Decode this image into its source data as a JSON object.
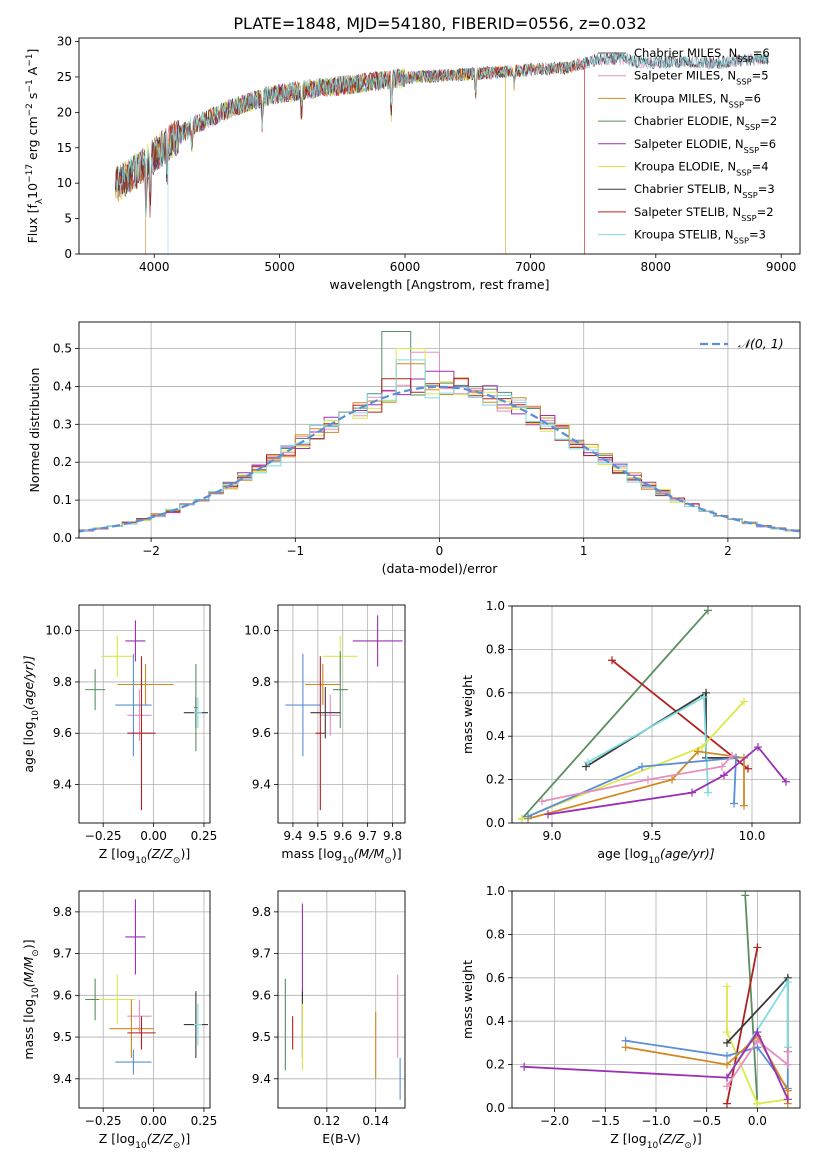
{
  "figure_title": "PLATE=1848, MJD=54180, FIBERID=0556, z=0.032",
  "chart_data": [
    {
      "id": "spectrum",
      "type": "line",
      "title": "PLATE=1848, MJD=54180, FIBERID=0556, z=0.032",
      "xlabel": "wavelength [Angstrom, rest frame]",
      "ylabel_parts": [
        "Flux [f",
        "λ",
        "10",
        "−17",
        " erg cm",
        "−2",
        " s",
        "−1",
        " A",
        "−1",
        "]"
      ],
      "xlim": [
        3400,
        9150
      ],
      "ylim": [
        0,
        30.5
      ],
      "xticks": [
        4000,
        5000,
        6000,
        7000,
        8000,
        9000
      ],
      "yticks": [
        0,
        5,
        10,
        15,
        20,
        25,
        30
      ],
      "grid": false,
      "legend_position": "top-right",
      "continuum": {
        "x": [
          3680,
          3800,
          3950,
          4100,
          4300,
          4600,
          4900,
          5200,
          5500,
          5800,
          6100,
          6400,
          6700,
          7000,
          7300,
          7550,
          7700,
          7900,
          8200,
          8500,
          8800,
          8900
        ],
        "y": [
          9.5,
          11,
          13,
          15.5,
          18,
          20.5,
          22.3,
          23.2,
          23.8,
          24.5,
          25,
          25.3,
          25.6,
          26,
          26.3,
          27.5,
          27.6,
          27,
          27.2,
          27,
          27.5,
          27.4
        ]
      },
      "series": [
        {
          "name_parts": [
            "Chabrier MILES, N",
            "SSP",
            "=6"
          ],
          "color": "#5b5b5b",
          "x_end": 8900
        },
        {
          "name_parts": [
            "Salpeter MILES, N",
            "SSP",
            "=5"
          ],
          "color": "#e58fbf",
          "x_end": 8900
        },
        {
          "name_parts": [
            "Kroupa MILES, N",
            "SSP",
            "=6"
          ],
          "color": "#d38822",
          "x_end": 7430
        },
        {
          "name_parts": [
            "Chabrier ELODIE, N",
            "SSP",
            "=2"
          ],
          "color": "#5a8f60",
          "x_end": 6800
        },
        {
          "name_parts": [
            "Salpeter ELODIE, N",
            "SSP",
            "=6"
          ],
          "color": "#9b30b5",
          "x_end": 6800
        },
        {
          "name_parts": [
            "Kroupa ELODIE, N",
            "SSP",
            "=4"
          ],
          "color": "#dde84a",
          "x_end": 6800
        },
        {
          "name_parts": [
            "Chabrier STELIB, N",
            "SSP",
            "=3"
          ],
          "color": "#3a3a3a",
          "x_end": 8900
        },
        {
          "name_parts": [
            "Salpeter STELIB, N",
            "SSP",
            "=2"
          ],
          "color": "#b22020",
          "x_end": 7430
        },
        {
          "name_parts": [
            "Kroupa STELIB, N",
            "SSP",
            "=3"
          ],
          "color": "#7fdde0",
          "x_end": 8900
        }
      ]
    },
    {
      "id": "residuals",
      "type": "histogram",
      "xlabel": "(data-model)/error",
      "ylabel": "Normed distribution",
      "xlim": [
        -2.5,
        2.5
      ],
      "ylim": [
        0,
        0.57
      ],
      "xticks": [
        -2,
        -1,
        0,
        1,
        2
      ],
      "yticks": [
        0.0,
        0.1,
        0.2,
        0.3,
        0.4,
        0.5
      ],
      "grid": true,
      "legend_position": "top-right",
      "reference_curve": {
        "name": "𝒩(0, 1)",
        "color": "#5b8fd6",
        "style": "dashed"
      },
      "bin_width": 0.1,
      "series": [
        {
          "color": "#5a8f60",
          "peak_bin": -0.3,
          "peak_value": 0.545
        },
        {
          "color": "#e58fbf",
          "peak_bin": -0.1,
          "peak_value": 0.49
        },
        {
          "color": "#d38822",
          "peak_bin": -0.2,
          "peak_value": 0.46
        },
        {
          "color": "#9b30b5",
          "peak_bin": 0.0,
          "peak_value": 0.44
        },
        {
          "color": "#dde84a",
          "peak_bin": -0.2,
          "peak_value": 0.5
        },
        {
          "color": "#b22020",
          "peak_bin": -0.3,
          "peak_value": 0.42
        },
        {
          "color": "#7fdde0",
          "peak_bin": -0.2,
          "peak_value": 0.47
        }
      ]
    },
    {
      "id": "age-vs-metallicity",
      "type": "errorbar",
      "xlabel_parts": [
        "Z [log",
        "10",
        "(Z/Z",
        "⊙",
        ")]"
      ],
      "ylabel_parts": [
        "age  [log",
        "10",
        "(age/yr)]"
      ],
      "xlim": [
        -0.37,
        0.28
      ],
      "ylim": [
        9.25,
        10.1
      ],
      "xticks": [
        -0.25,
        0.0,
        0.25
      ],
      "xtick_labels": [
        "−0.25",
        "0.00",
        "0.25"
      ],
      "yticks": [
        9.4,
        9.6,
        9.8,
        10.0
      ],
      "grid": true,
      "points": [
        {
          "color": "#5a8f60",
          "x": -0.29,
          "y": 9.77,
          "xerr": 0.05,
          "yerr": 0.08
        },
        {
          "color": "#dde84a",
          "x": -0.18,
          "y": 9.9,
          "xerr": 0.08,
          "yerr": 0.08
        },
        {
          "color": "#9b30b5",
          "x": -0.09,
          "y": 9.96,
          "xerr": 0.05,
          "yerr": 0.08
        },
        {
          "color": "#d38822",
          "x": -0.04,
          "y": 9.79,
          "xerr": 0.14,
          "yerr": 0.08
        },
        {
          "color": "#e58fbf",
          "x": -0.07,
          "y": 9.67,
          "xerr": 0.06,
          "yerr": 0.1
        },
        {
          "color": "#5b8fd6",
          "x": -0.1,
          "y": 9.71,
          "xerr": 0.09,
          "yerr": 0.2
        },
        {
          "color": "#b22020",
          "x": -0.06,
          "y": 9.6,
          "xerr": 0.07,
          "yerr": 0.3
        },
        {
          "color": "#3a3a3a",
          "x": 0.21,
          "y": 9.68,
          "xerr": 0.06,
          "yerr": 0.06
        },
        {
          "color": "#5a8f60",
          "x": 0.21,
          "y": 9.7,
          "xerr": 0.01,
          "yerr": 0.17
        },
        {
          "color": "#7fdde0",
          "x": 0.22,
          "y": 9.68,
          "xerr": 0.02,
          "yerr": 0.06
        }
      ]
    },
    {
      "id": "age-vs-mass",
      "type": "errorbar",
      "xlabel_parts": [
        "mass [log",
        "10",
        "(M/M",
        "⊙",
        ")]"
      ],
      "ylim": [
        9.25,
        10.1
      ],
      "xlim": [
        9.34,
        9.85
      ],
      "xticks": [
        9.4,
        9.5,
        9.6,
        9.7,
        9.8
      ],
      "yticks": [
        9.4,
        9.6,
        9.8,
        10.0
      ],
      "grid": true,
      "points": [
        {
          "color": "#9b30b5",
          "x": 9.74,
          "y": 9.96,
          "xerr": 0.1,
          "yerr": 0.1
        },
        {
          "color": "#dde84a",
          "x": 9.59,
          "y": 9.9,
          "xerr": 0.07,
          "yerr": 0.08
        },
        {
          "color": "#5b8fd6",
          "x": 9.44,
          "y": 9.71,
          "xerr": 0.07,
          "yerr": 0.2
        },
        {
          "color": "#d38822",
          "x": 9.52,
          "y": 9.79,
          "xerr": 0.07,
          "yerr": 0.08
        },
        {
          "color": "#5a8f60",
          "x": 9.59,
          "y": 9.77,
          "xerr": 0.03,
          "yerr": 0.15
        },
        {
          "color": "#e58fbf",
          "x": 9.55,
          "y": 9.67,
          "xerr": 0.04,
          "yerr": 0.08
        },
        {
          "color": "#b22020",
          "x": 9.51,
          "y": 9.6,
          "xerr": 0.02,
          "yerr": 0.3
        },
        {
          "color": "#3a3a3a",
          "x": 9.53,
          "y": 9.68,
          "xerr": 0.06,
          "yerr": 0.1
        }
      ]
    },
    {
      "id": "weight-vs-age",
      "type": "line",
      "xlabel_parts": [
        "age  [log",
        "10",
        "(age/yr)]"
      ],
      "ylabel": "mass weight",
      "xlim": [
        8.8,
        10.24
      ],
      "ylim": [
        0,
        1.0
      ],
      "xticks": [
        9.0,
        9.5,
        10.0
      ],
      "yticks": [
        0.0,
        0.2,
        0.4,
        0.6,
        0.8,
        1.0
      ],
      "grid": true,
      "series": [
        {
          "color": "#5a8f60",
          "x": [
            8.85,
            9.78
          ],
          "y": [
            0.02,
            0.98
          ]
        },
        {
          "color": "#b22020",
          "x": [
            9.3,
            9.98
          ],
          "y": [
            0.75,
            0.25
          ]
        },
        {
          "color": "#3a3a3a",
          "x": [
            9.17,
            9.77,
            9.77,
            9.92
          ],
          "y": [
            0.26,
            0.6,
            0.3,
            0.3
          ]
        },
        {
          "color": "#7fdde0",
          "x": [
            9.18,
            9.76,
            9.78
          ],
          "y": [
            0.28,
            0.58,
            0.14
          ]
        },
        {
          "color": "#dde84a",
          "x": [
            8.85,
            9.75,
            9.96
          ],
          "y": [
            0.02,
            0.35,
            0.56
          ]
        },
        {
          "color": "#d38822",
          "x": [
            8.88,
            9.6,
            9.73,
            9.96,
            9.96
          ],
          "y": [
            0.02,
            0.2,
            0.33,
            0.3,
            0.08
          ]
        },
        {
          "color": "#5b8fd6",
          "x": [
            8.88,
            9.45,
            9.92,
            9.91
          ],
          "y": [
            0.03,
            0.26,
            0.3,
            0.09
          ]
        },
        {
          "color": "#e58fbf",
          "x": [
            8.95,
            9.48,
            9.85,
            9.9
          ],
          "y": [
            0.1,
            0.2,
            0.26,
            0.31
          ]
        },
        {
          "color": "#9b30b5",
          "x": [
            8.98,
            9.7,
            9.86,
            10.03,
            10.17
          ],
          "y": [
            0.04,
            0.14,
            0.22,
            0.35,
            0.19
          ]
        }
      ]
    },
    {
      "id": "mass-vs-metallicity",
      "type": "errorbar",
      "xlabel_parts": [
        "Z [log",
        "10",
        "(Z/Z",
        "⊙",
        ")]"
      ],
      "ylabel_parts": [
        "mass [log",
        "10",
        "(M/M",
        "⊙",
        ")]"
      ],
      "xlim": [
        -0.37,
        0.28
      ],
      "ylim": [
        9.33,
        9.85
      ],
      "xticks": [
        -0.25,
        0.0,
        0.25
      ],
      "xtick_labels": [
        "−0.25",
        "0.00",
        "0.25"
      ],
      "yticks": [
        9.4,
        9.5,
        9.6,
        9.7,
        9.8
      ],
      "grid": true,
      "points": [
        {
          "color": "#5a8f60",
          "x": -0.29,
          "y": 9.59,
          "xerr": 0.05,
          "yerr": 0.05
        },
        {
          "color": "#dde84a",
          "x": -0.18,
          "y": 9.59,
          "xerr": 0.09,
          "yerr": 0.06
        },
        {
          "color": "#9b30b5",
          "x": -0.09,
          "y": 9.74,
          "xerr": 0.05,
          "yerr": 0.09
        },
        {
          "color": "#e58fbf",
          "x": -0.07,
          "y": 9.55,
          "xerr": 0.06,
          "yerr": 0.04
        },
        {
          "color": "#d38822",
          "x": -0.11,
          "y": 9.52,
          "xerr": 0.11,
          "yerr": 0.07
        },
        {
          "color": "#b22020",
          "x": -0.06,
          "y": 9.51,
          "xerr": 0.07,
          "yerr": 0.04
        },
        {
          "color": "#5b8fd6",
          "x": -0.1,
          "y": 9.44,
          "xerr": 0.09,
          "yerr": 0.03
        },
        {
          "color": "#3a3a3a",
          "x": 0.21,
          "y": 9.53,
          "xerr": 0.06,
          "yerr": 0.08
        },
        {
          "color": "#7fdde0",
          "x": 0.22,
          "y": 9.53,
          "xerr": 0.02,
          "yerr": 0.05
        }
      ]
    },
    {
      "id": "mass-vs-extinction",
      "type": "errorbar",
      "xlabel": "E(B-V)",
      "xlim": [
        0.1,
        0.152
      ],
      "ylim": [
        9.33,
        9.85
      ],
      "xticks": [
        0.12,
        0.14
      ],
      "yticks": [
        9.4,
        9.5,
        9.6,
        9.7,
        9.8
      ],
      "grid": true,
      "points": [
        {
          "color": "#5a8f60",
          "x": 0.103,
          "y": 9.53,
          "xerr": 0.0,
          "yerr": 0.11
        },
        {
          "color": "#b22020",
          "x": 0.106,
          "y": 9.51,
          "xerr": 0.0,
          "yerr": 0.04
        },
        {
          "color": "#9b30b5",
          "x": 0.11,
          "y": 9.66,
          "xerr": 0.0,
          "yerr": 0.16
        },
        {
          "color": "#3a3a3a",
          "x": 0.11,
          "y": 9.53,
          "xerr": 0.0,
          "yerr": 0.08
        },
        {
          "color": "#dde84a",
          "x": 0.11,
          "y": 9.5,
          "xerr": 0.0,
          "yerr": 0.08
        },
        {
          "color": "#d38822",
          "x": 0.14,
          "y": 9.48,
          "xerr": 0.0,
          "yerr": 0.08
        },
        {
          "color": "#e58fbf",
          "x": 0.149,
          "y": 9.55,
          "xerr": 0.0,
          "yerr": 0.1
        },
        {
          "color": "#5b8fd6",
          "x": 0.15,
          "y": 9.4,
          "xerr": 0.0,
          "yerr": 0.05
        }
      ]
    },
    {
      "id": "weight-vs-metallicity",
      "type": "line",
      "xlabel_parts": [
        "Z [log",
        "10",
        "(Z/Z",
        "⊙",
        ")]"
      ],
      "ylabel": "mass weight",
      "xlim": [
        -2.42,
        0.42
      ],
      "ylim": [
        0,
        1.0
      ],
      "xticks": [
        -2.0,
        -1.5,
        -1.0,
        -0.5,
        0.0
      ],
      "xtick_labels": [
        "−2.0",
        "−1.5",
        "−1.0",
        "−0.5",
        "0.0"
      ],
      "yticks": [
        0.0,
        0.2,
        0.4,
        0.6,
        0.8,
        1.0
      ],
      "grid": true,
      "series": [
        {
          "color": "#5a8f60",
          "x": [
            -0.12,
            0.0
          ],
          "y": [
            0.98,
            0.02
          ]
        },
        {
          "color": "#b22020",
          "x": [
            -0.3,
            0.0
          ],
          "y": [
            0.02,
            0.74
          ]
        },
        {
          "color": "#dde84a",
          "x": [
            -0.3,
            -0.3,
            0.0,
            0.3
          ],
          "y": [
            0.56,
            0.35,
            0.02,
            0.04
          ]
        },
        {
          "color": "#3a3a3a",
          "x": [
            -0.3,
            0.3,
            0.3
          ],
          "y": [
            0.3,
            0.6,
            0.26
          ]
        },
        {
          "color": "#7fdde0",
          "x": [
            -0.3,
            0.3,
            0.3
          ],
          "y": [
            0.14,
            0.58,
            0.28
          ]
        },
        {
          "color": "#5b8fd6",
          "x": [
            -1.3,
            -0.3,
            0.0,
            0.3,
            0.3
          ],
          "y": [
            0.31,
            0.24,
            0.28,
            0.09,
            0.26
          ]
        },
        {
          "color": "#d38822",
          "x": [
            -1.3,
            -0.3,
            0.0,
            0.3,
            0.3
          ],
          "y": [
            0.28,
            0.2,
            0.33,
            0.08,
            0.02
          ]
        },
        {
          "color": "#e58fbf",
          "x": [
            -0.3,
            0.0,
            0.3,
            0.3
          ],
          "y": [
            0.1,
            0.31,
            0.2,
            0.26
          ]
        },
        {
          "color": "#9b30b5",
          "x": [
            -2.3,
            -0.3,
            0.0,
            0.3
          ],
          "y": [
            0.19,
            0.14,
            0.35,
            0.04
          ]
        }
      ]
    }
  ]
}
